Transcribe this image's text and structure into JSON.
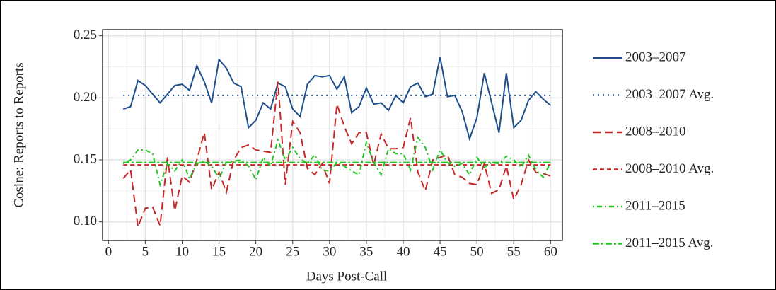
{
  "chart_data": {
    "type": "line",
    "xlabel": "Days Post-Call",
    "ylabel": "Cosine: Reports to Reports",
    "x": [
      2,
      3,
      4,
      5,
      6,
      7,
      8,
      9,
      10,
      11,
      12,
      13,
      14,
      15,
      16,
      17,
      18,
      19,
      20,
      21,
      22,
      23,
      24,
      25,
      26,
      27,
      28,
      29,
      30,
      31,
      32,
      33,
      34,
      35,
      36,
      37,
      38,
      39,
      40,
      41,
      42,
      43,
      44,
      45,
      46,
      47,
      48,
      49,
      50,
      51,
      52,
      53,
      54,
      55,
      56,
      57,
      58,
      59,
      60
    ],
    "series": [
      {
        "name": "2003–2007",
        "color": "#1f4e8c",
        "dash": "solid",
        "values": [
          0.191,
          0.193,
          0.214,
          0.21,
          0.203,
          0.196,
          0.203,
          0.21,
          0.211,
          0.206,
          0.226,
          0.213,
          0.196,
          0.231,
          0.224,
          0.212,
          0.209,
          0.176,
          0.182,
          0.196,
          0.191,
          0.212,
          0.209,
          0.191,
          0.185,
          0.211,
          0.218,
          0.217,
          0.218,
          0.207,
          0.217,
          0.188,
          0.193,
          0.208,
          0.195,
          0.196,
          0.19,
          0.202,
          0.196,
          0.209,
          0.212,
          0.201,
          0.203,
          0.233,
          0.201,
          0.202,
          0.189,
          0.167,
          0.184,
          0.22,
          0.196,
          0.172,
          0.22,
          0.176,
          0.182,
          0.198,
          0.205,
          0.199,
          0.194
        ]
      },
      {
        "name": "2003–2007 Avg.",
        "color": "#1f4e8c",
        "dash": "dotted",
        "mean": 0.202
      },
      {
        "name": "2008–2010",
        "color": "#c62828",
        "dash": "dashed",
        "values": [
          0.135,
          0.142,
          0.096,
          0.111,
          0.112,
          0.097,
          0.152,
          0.109,
          0.137,
          0.132,
          0.15,
          0.172,
          0.126,
          0.14,
          0.124,
          0.15,
          0.16,
          0.162,
          0.158,
          0.157,
          0.156,
          0.213,
          0.13,
          0.181,
          0.172,
          0.143,
          0.138,
          0.147,
          0.131,
          0.195,
          0.177,
          0.163,
          0.172,
          0.172,
          0.146,
          0.171,
          0.159,
          0.159,
          0.16,
          0.184,
          0.14,
          0.125,
          0.15,
          0.152,
          0.154,
          0.138,
          0.136,
          0.131,
          0.13,
          0.147,
          0.123,
          0.126,
          0.145,
          0.118,
          0.13,
          0.15,
          0.14,
          0.139,
          0.137
        ]
      },
      {
        "name": "2008–2010 Avg.",
        "color": "#c62828",
        "dash": "shortdash",
        "mean": 0.146
      },
      {
        "name": "2011–2015",
        "color": "#22c322",
        "dash": "dotdash",
        "values": [
          0.147,
          0.15,
          0.158,
          0.158,
          0.155,
          0.13,
          0.147,
          0.141,
          0.15,
          0.135,
          0.147,
          0.149,
          0.145,
          0.135,
          0.148,
          0.149,
          0.15,
          0.145,
          0.134,
          0.152,
          0.145,
          0.166,
          0.15,
          0.16,
          0.151,
          0.147,
          0.154,
          0.142,
          0.141,
          0.148,
          0.145,
          0.141,
          0.138,
          0.164,
          0.148,
          0.138,
          0.159,
          0.155,
          0.155,
          0.142,
          0.168,
          0.16,
          0.142,
          0.158,
          0.148,
          0.145,
          0.147,
          0.138,
          0.152,
          0.144,
          0.148,
          0.147,
          0.153,
          0.15,
          0.144,
          0.154,
          0.142,
          0.136,
          0.148
        ]
      },
      {
        "name": "2011–2015 Avg.",
        "color": "#22c322",
        "dash": "longdash",
        "mean": 0.148
      }
    ],
    "xlim": [
      -0.8,
      61.6
    ],
    "xticks": [
      0,
      5,
      10,
      15,
      20,
      25,
      30,
      35,
      40,
      45,
      50,
      55,
      60
    ],
    "ylim": [
      0.085,
      0.255
    ],
    "yticks": [
      {
        "value": 0.1,
        "label": "0.10"
      },
      0.15,
      {
        "value": 0.2,
        "label": "0.20"
      },
      0.25
    ],
    "grid": true,
    "legend": "right"
  }
}
